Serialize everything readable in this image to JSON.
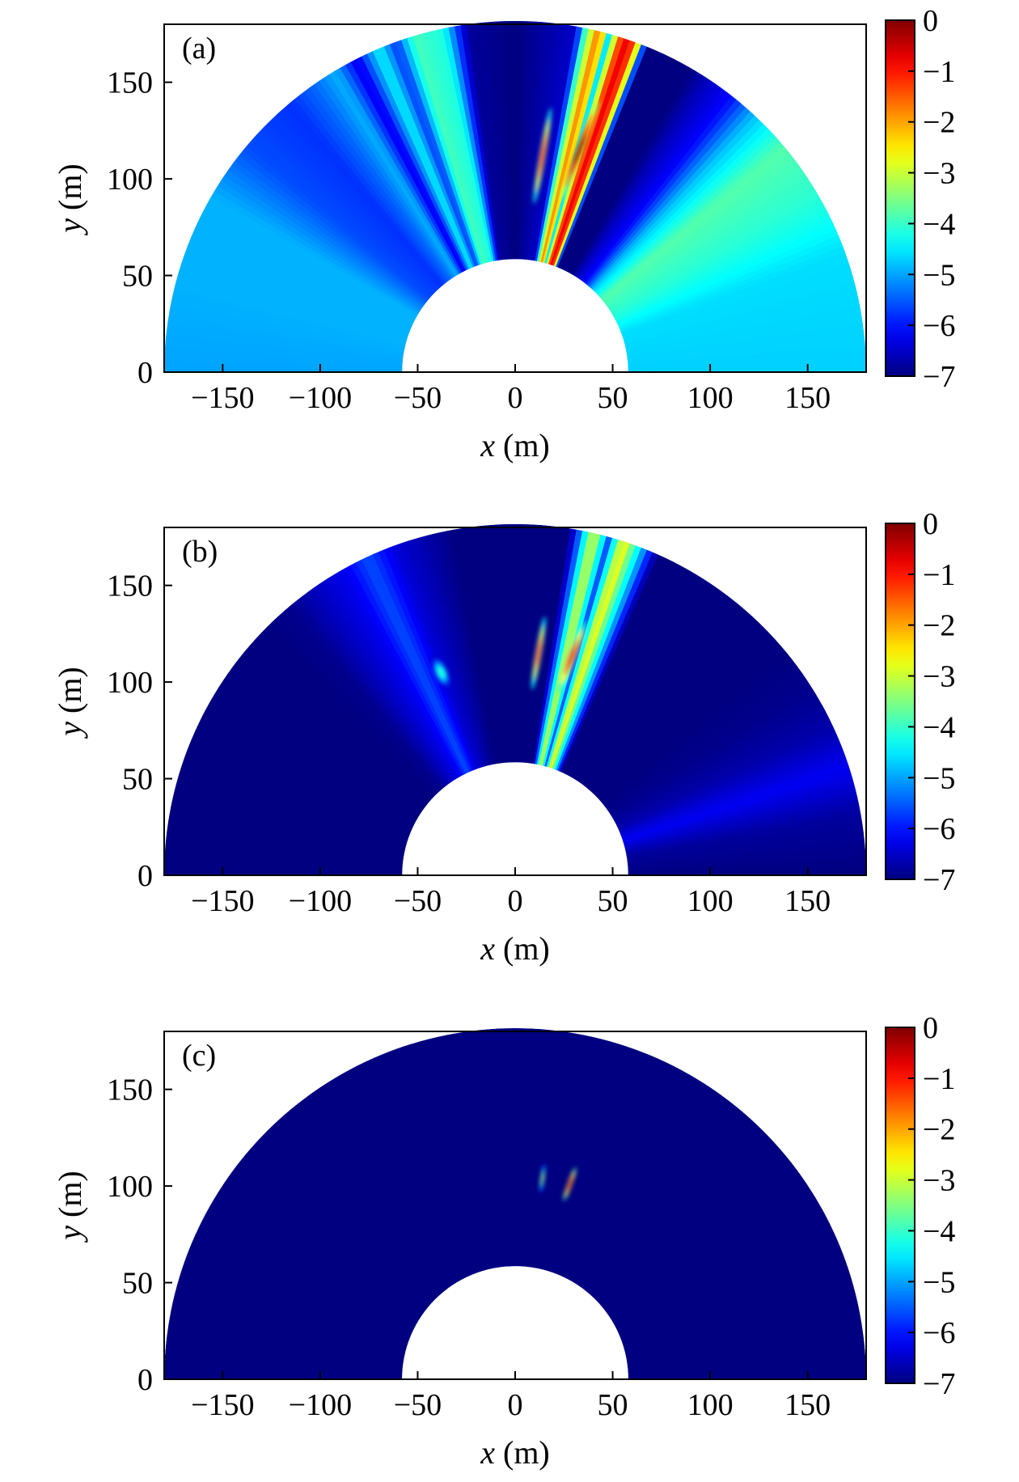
{
  "chart_data": [
    {
      "type": "heatmap",
      "panel": "(a)",
      "title": "",
      "xlabel_var": "x",
      "xlabel_unit": " (m)",
      "ylabel_var": "y",
      "ylabel_unit": " (m)",
      "xlim": [
        -180,
        180
      ],
      "ylim": [
        0,
        180
      ],
      "xticks": [
        -150,
        -100,
        -50,
        0,
        50,
        100,
        150
      ],
      "yticks": [
        0,
        50,
        100,
        150
      ],
      "annulus": {
        "inner_radius": 58,
        "outer_radius": 180
      },
      "colorbar": {
        "min": -7,
        "max": 0,
        "ticks": [
          0,
          -1,
          -2,
          -3,
          -4,
          -5,
          -6,
          -7
        ],
        "colormap": "jet"
      },
      "background_value": -5.2,
      "angular_profile": [
        {
          "deg": 0,
          "v": -4.7
        },
        {
          "deg": 20,
          "v": -4.6
        },
        {
          "deg": 30,
          "v": -4.1
        },
        {
          "deg": 40,
          "v": -3.8
        },
        {
          "deg": 47,
          "v": -4.8
        },
        {
          "deg": 52,
          "v": -6.1
        },
        {
          "deg": 57,
          "v": -6.6
        },
        {
          "deg": 60,
          "v": -7.0
        },
        {
          "deg": 68,
          "v": -7.0
        },
        {
          "deg": 70,
          "v": -1.4
        },
        {
          "deg": 72,
          "v": -0.6
        },
        {
          "deg": 74.5,
          "v": -4.5
        },
        {
          "deg": 76,
          "v": -1.4
        },
        {
          "deg": 78.5,
          "v": -4.0
        },
        {
          "deg": 80,
          "v": -6.5
        },
        {
          "deg": 90,
          "v": -7.0
        },
        {
          "deg": 98,
          "v": -6.8
        },
        {
          "deg": 102,
          "v": -4.2
        },
        {
          "deg": 107,
          "v": -3.9
        },
        {
          "deg": 110,
          "v": -5.8
        },
        {
          "deg": 113,
          "v": -4.4
        },
        {
          "deg": 117,
          "v": -6.3
        },
        {
          "deg": 121,
          "v": -4.9
        },
        {
          "deg": 125,
          "v": -5.4
        },
        {
          "deg": 130,
          "v": -5.8
        },
        {
          "deg": 140,
          "v": -5.6
        },
        {
          "deg": 150,
          "v": -4.9
        },
        {
          "deg": 165,
          "v": -4.9
        },
        {
          "deg": 180,
          "v": -5.0
        }
      ],
      "hotspots": [
        {
          "x": 33,
          "y": 115,
          "value": -0.2,
          "along": 55,
          "across": 4,
          "angle_deg": 69
        },
        {
          "x": 14,
          "y": 112,
          "value": -1.2,
          "along": 50,
          "across": 3,
          "angle_deg": 80
        }
      ]
    },
    {
      "type": "heatmap",
      "panel": "(b)",
      "title": "",
      "xlabel_var": "x",
      "xlabel_unit": " (m)",
      "ylabel_var": "y",
      "ylabel_unit": " (m)",
      "xlim": [
        -180,
        180
      ],
      "ylim": [
        0,
        180
      ],
      "xticks": [
        -150,
        -100,
        -50,
        0,
        50,
        100,
        150
      ],
      "yticks": [
        0,
        50,
        100,
        150
      ],
      "annulus": {
        "inner_radius": 58,
        "outer_radius": 180
      },
      "colorbar": {
        "min": -7,
        "max": 0,
        "ticks": [
          0,
          -1,
          -2,
          -3,
          -4,
          -5,
          -6,
          -7
        ],
        "colormap": "jet"
      },
      "background_value": -7.0,
      "angular_profile": [
        {
          "deg": 0,
          "v": -7.0
        },
        {
          "deg": 10,
          "v": -6.8
        },
        {
          "deg": 18,
          "v": -6.2
        },
        {
          "deg": 25,
          "v": -6.7
        },
        {
          "deg": 32,
          "v": -6.9
        },
        {
          "deg": 40,
          "v": -7.0
        },
        {
          "deg": 66,
          "v": -7.0
        },
        {
          "deg": 70,
          "v": -4.0
        },
        {
          "deg": 72,
          "v": -2.5
        },
        {
          "deg": 74.5,
          "v": -5.5
        },
        {
          "deg": 77,
          "v": -2.8
        },
        {
          "deg": 79.5,
          "v": -5.5
        },
        {
          "deg": 81,
          "v": -7.0
        },
        {
          "deg": 100,
          "v": -7.0
        },
        {
          "deg": 110,
          "v": -6.4
        },
        {
          "deg": 115,
          "v": -5.6
        },
        {
          "deg": 119,
          "v": -6.2
        },
        {
          "deg": 124,
          "v": -6.5
        },
        {
          "deg": 130,
          "v": -6.9
        },
        {
          "deg": 136,
          "v": -7.0
        },
        {
          "deg": 180,
          "v": -7.0
        }
      ],
      "hotspots": [
        {
          "x": 29,
          "y": 113,
          "value": -1.0,
          "along": 40,
          "across": 4,
          "angle_deg": 69
        },
        {
          "x": 12,
          "y": 115,
          "value": -1.4,
          "along": 38,
          "across": 3,
          "angle_deg": 80
        },
        {
          "x": -38,
          "y": 105,
          "value": -4.2,
          "along": 20,
          "across": 6,
          "angle_deg": 115
        }
      ]
    },
    {
      "type": "heatmap",
      "panel": "(c)",
      "title": "",
      "xlabel_var": "x",
      "xlabel_unit": " (m)",
      "ylabel_var": "y",
      "ylabel_unit": " (m)",
      "xlim": [
        -180,
        180
      ],
      "ylim": [
        0,
        180
      ],
      "xticks": [
        -150,
        -100,
        -50,
        0,
        50,
        100,
        150
      ],
      "yticks": [
        0,
        50,
        100,
        150
      ],
      "annulus": {
        "inner_radius": 58,
        "outer_radius": 180
      },
      "colorbar": {
        "min": -7,
        "max": 0,
        "ticks": [
          0,
          -1,
          -2,
          -3,
          -4,
          -5,
          -6,
          -7
        ],
        "colormap": "jet"
      },
      "background_value": -7.0,
      "angular_profile": [],
      "hotspots": [
        {
          "x": 28,
          "y": 101,
          "value": -0.8,
          "along": 18,
          "across": 2.2,
          "angle_deg": 70
        },
        {
          "x": 14,
          "y": 104,
          "value": -3.2,
          "along": 16,
          "across": 1.8,
          "angle_deg": 82
        }
      ]
    }
  ]
}
